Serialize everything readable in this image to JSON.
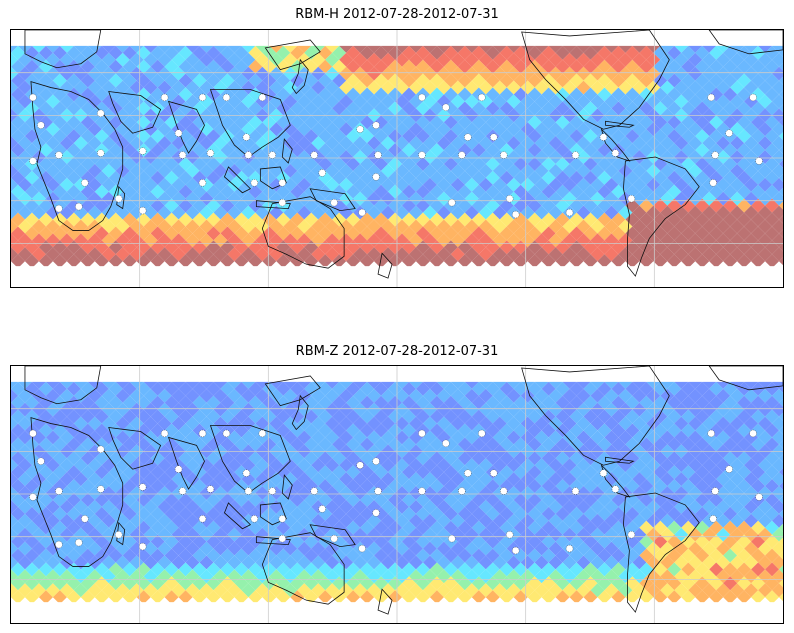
{
  "panels": [
    {
      "id": "top",
      "title": "RBM-H 2012-07-28-2012-07-31",
      "variable": "RBM-H"
    },
    {
      "id": "bottom",
      "title": "RBM-Z 2012-07-28-2012-07-31",
      "variable": "RBM-Z"
    }
  ],
  "map": {
    "projection": "equirectangular",
    "coastlines": true,
    "gridlines": true,
    "station_markers": true
  },
  "colormap": [
    "#6e5cf5",
    "#6c8cff",
    "#62b4ff",
    "#5ee6ff",
    "#8ff0a8",
    "#ffe86a",
    "#ffb05a",
    "#f47060",
    "#b86a6a"
  ]
}
